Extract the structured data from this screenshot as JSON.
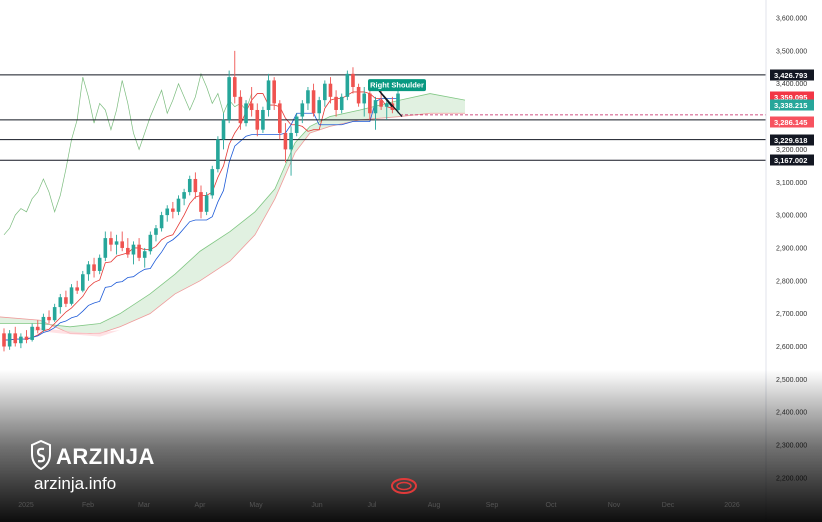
{
  "chart_data": {
    "type": "candlestick",
    "y_axis": {
      "ticks": [
        "3,600.000",
        "3,500.000",
        "3,400.000",
        "3,200.000",
        "3,100.000",
        "3,000.000",
        "2,900.000",
        "2,800.000",
        "2,700.000",
        "2,600.000",
        "2,500.000",
        "2,400.000",
        "2,300.000",
        "2,200.000"
      ],
      "tick_values": [
        3600,
        3500,
        3400,
        3200,
        3100,
        3000,
        2900,
        2800,
        2700,
        2600,
        2500,
        2400,
        2300,
        2200
      ],
      "ylim": [
        2180,
        3650
      ]
    },
    "x_axis": {
      "ticks": [
        "2025",
        "Feb",
        "Mar",
        "Apr",
        "May",
        "Jun",
        "Jul",
        "Aug",
        "Sep",
        "Oct",
        "Nov",
        "Dec",
        "2026"
      ]
    },
    "price_levels": [
      {
        "label": "3,426.793",
        "value": 3426.793,
        "color": "#131722"
      },
      {
        "label": "3,359.095",
        "value": 3359.095,
        "color": "#f23645"
      },
      {
        "label": "3,338.215",
        "value": 3338.215,
        "color": "#26a69a"
      },
      {
        "label": "3,286.145",
        "value": 3286.145,
        "color": "#f7525f"
      },
      {
        "label": "3,229.618",
        "value": 3229.618,
        "color": "#131722"
      },
      {
        "label": "3,167.002",
        "value": 3167.002,
        "color": "#131722"
      }
    ],
    "horizontal_lines": [
      3426.793,
      3290,
      3229.618,
      3167.002
    ],
    "annotation": {
      "text": "Right Shoulder",
      "color": "#089981"
    },
    "candles": [
      [
        2640,
        2655,
        2585,
        2600
      ],
      [
        2600,
        2650,
        2590,
        2640
      ],
      [
        2640,
        2660,
        2600,
        2610
      ],
      [
        2610,
        2640,
        2595,
        2630
      ],
      [
        2630,
        2650,
        2610,
        2620
      ],
      [
        2620,
        2670,
        2615,
        2660
      ],
      [
        2660,
        2680,
        2640,
        2650
      ],
      [
        2650,
        2700,
        2645,
        2690
      ],
      [
        2690,
        2710,
        2670,
        2680
      ],
      [
        2680,
        2730,
        2675,
        2720
      ],
      [
        2720,
        2760,
        2700,
        2750
      ],
      [
        2750,
        2770,
        2720,
        2730
      ],
      [
        2730,
        2790,
        2725,
        2780
      ],
      [
        2780,
        2800,
        2760,
        2770
      ],
      [
        2770,
        2830,
        2765,
        2820
      ],
      [
        2820,
        2860,
        2800,
        2850
      ],
      [
        2850,
        2870,
        2810,
        2830
      ],
      [
        2830,
        2880,
        2820,
        2870
      ],
      [
        2870,
        2950,
        2860,
        2930
      ],
      [
        2930,
        2950,
        2890,
        2910
      ],
      [
        2910,
        2940,
        2880,
        2920
      ],
      [
        2920,
        2950,
        2890,
        2900
      ],
      [
        2900,
        2930,
        2870,
        2880
      ],
      [
        2880,
        2920,
        2850,
        2910
      ],
      [
        2910,
        2930,
        2860,
        2870
      ],
      [
        2870,
        2900,
        2840,
        2890
      ],
      [
        2890,
        2950,
        2880,
        2940
      ],
      [
        2940,
        2970,
        2920,
        2960
      ],
      [
        2960,
        3010,
        2950,
        3000
      ],
      [
        3000,
        3030,
        2980,
        3020
      ],
      [
        3020,
        3040,
        2990,
        3010
      ],
      [
        3010,
        3060,
        3000,
        3050
      ],
      [
        3050,
        3080,
        3030,
        3070
      ],
      [
        3070,
        3120,
        3060,
        3110
      ],
      [
        3110,
        3130,
        3050,
        3070
      ],
      [
        3070,
        3090,
        2990,
        3010
      ],
      [
        3010,
        3070,
        3000,
        3060
      ],
      [
        3060,
        3150,
        3050,
        3140
      ],
      [
        3140,
        3240,
        3130,
        3230
      ],
      [
        3230,
        3310,
        3200,
        3290
      ],
      [
        3290,
        3440,
        3280,
        3420
      ],
      [
        3420,
        3500,
        3340,
        3360
      ],
      [
        3360,
        3380,
        3260,
        3280
      ],
      [
        3280,
        3350,
        3270,
        3340
      ],
      [
        3340,
        3390,
        3300,
        3320
      ],
      [
        3320,
        3340,
        3240,
        3260
      ],
      [
        3260,
        3330,
        3250,
        3320
      ],
      [
        3320,
        3430,
        3300,
        3410
      ],
      [
        3410,
        3420,
        3320,
        3340
      ],
      [
        3340,
        3350,
        3230,
        3250
      ],
      [
        3250,
        3280,
        3160,
        3200
      ],
      [
        3200,
        3270,
        3120,
        3250
      ],
      [
        3250,
        3310,
        3240,
        3300
      ],
      [
        3300,
        3350,
        3280,
        3340
      ],
      [
        3340,
        3390,
        3320,
        3380
      ],
      [
        3380,
        3400,
        3300,
        3310
      ],
      [
        3310,
        3360,
        3290,
        3350
      ],
      [
        3350,
        3410,
        3330,
        3400
      ],
      [
        3400,
        3420,
        3340,
        3360
      ],
      [
        3360,
        3380,
        3300,
        3320
      ],
      [
        3320,
        3370,
        3310,
        3360
      ],
      [
        3360,
        3440,
        3350,
        3430
      ],
      [
        3430,
        3450,
        3370,
        3390
      ],
      [
        3390,
        3400,
        3330,
        3340
      ],
      [
        3340,
        3390,
        3300,
        3370
      ],
      [
        3370,
        3380,
        3290,
        3310
      ],
      [
        3310,
        3360,
        3260,
        3350
      ],
      [
        3350,
        3380,
        3320,
        3330
      ],
      [
        3330,
        3350,
        3290,
        3340
      ],
      [
        3340,
        3360,
        3310,
        3320
      ],
      [
        3320,
        3380,
        3310,
        3370
      ]
    ]
  },
  "brand": {
    "name": "ARZINJA",
    "url": "arzinja.info"
  }
}
